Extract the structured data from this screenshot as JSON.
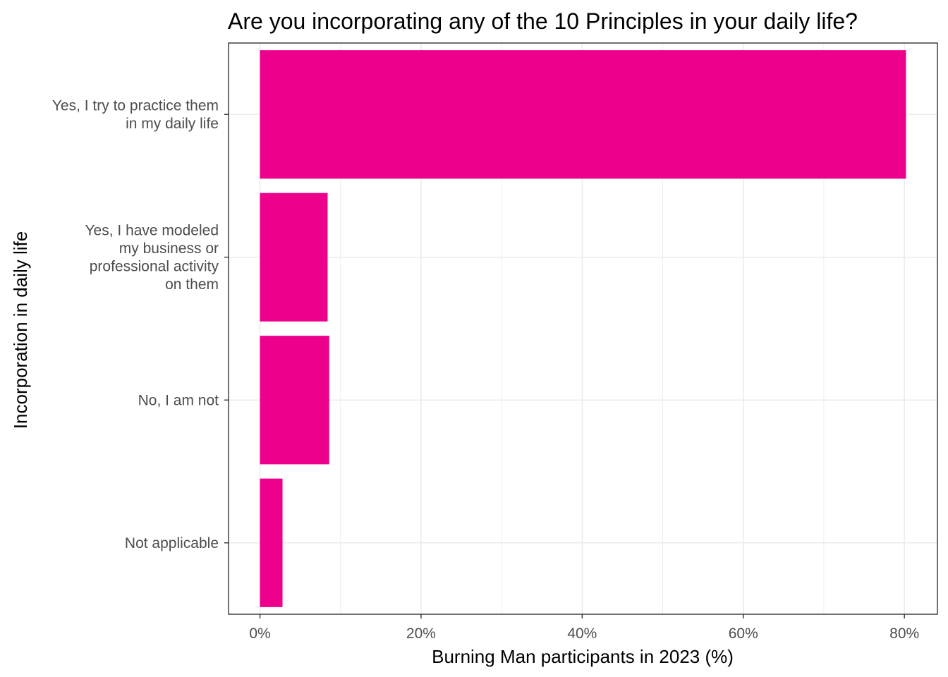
{
  "chart_data": {
    "type": "bar",
    "orientation": "horizontal",
    "title": "Are you incorporating any of the 10 Principles in your daily life?",
    "xlabel": "Burning Man participants in 2023 (%)",
    "ylabel": "Incorporation in daily life",
    "categories": [
      "Yes, I try to practice them in my daily life",
      "Yes, I have modeled my business or professional activity on them",
      "No, I am not",
      "Not applicable"
    ],
    "category_label_lines": [
      [
        "Yes, I try to practice them",
        "in my daily life"
      ],
      [
        "Yes, I have modeled",
        "my business or",
        "professional activity",
        "on them"
      ],
      [
        "No, I am not"
      ],
      [
        "Not applicable"
      ]
    ],
    "values": [
      80.2,
      8.4,
      8.6,
      2.8
    ],
    "xlim": [
      -3.9,
      84.1
    ],
    "xticks": [
      0,
      20,
      40,
      60,
      80
    ],
    "xtick_labels": [
      "0%",
      "20%",
      "40%",
      "60%",
      "80%"
    ],
    "bar_color": "#EC008C",
    "grid": true
  }
}
